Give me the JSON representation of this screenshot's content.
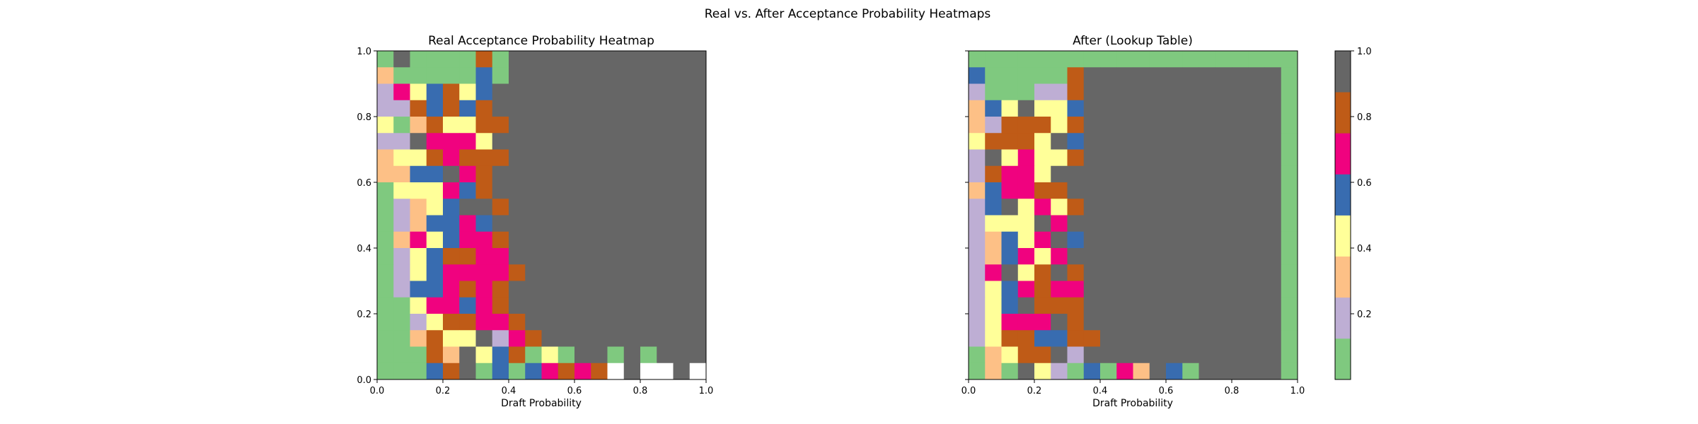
{
  "figure": {
    "suptitle": "Real vs. After Acceptance Probability Heatmaps"
  },
  "colorbar": {
    "ticks": [
      0.2,
      0.4,
      0.6,
      0.8,
      1.0
    ],
    "tick_labels": [
      "0.2",
      "0.4",
      "0.6",
      "0.8",
      "1.0"
    ],
    "range": [
      0,
      1
    ],
    "colors": [
      "#7fc97f",
      "#beaed4",
      "#fdc086",
      "#ffff99",
      "#386cb0",
      "#f0027f",
      "#bf5b17",
      "#666666"
    ]
  },
  "chart_data": [
    {
      "type": "heatmap",
      "title": "Real Acceptance Probability Heatmap",
      "xlabel": "Draft Probability",
      "ylabel": "",
      "xlim": [
        0,
        1
      ],
      "ylim": [
        0,
        1
      ],
      "xticks": [
        "0.0",
        "0.2",
        "0.4",
        "0.6",
        "0.8",
        "1.0"
      ],
      "yticks": [
        "0.0",
        "0.2",
        "0.4",
        "0.6",
        "0.8",
        "1.0"
      ],
      "grid_size": 20,
      "cell_value_encoding": "level index into colorbar.colors (0-7); -1 = no data (white)",
      "rows_top_to_bottom": [
        "07000060777777777777",
        "20000040777777777777",
        "15346347777777777777",
        "11646467777777777777",
        "30263366777777777777",
        "11755537777777777777",
        "23365666777777777777",
        "22447567777777777777",
        "03335467777777777777",
        "01234776777777777777",
        "01244547777777777777",
        "02534556777777777777",
        "01346655777777777777",
        "01345555677777777777",
        "01445656777777777777",
        "00355456777777777777",
        "00136655677777777777",
        "00263371567777777777",
        "00062734603077070777",
        "00046704045656-7--7-"
      ]
    },
    {
      "type": "heatmap",
      "title": "After (Lookup Table)",
      "xlabel": "Draft Probability",
      "ylabel": "",
      "xlim": [
        0,
        1
      ],
      "ylim": [
        0,
        1
      ],
      "xticks": [
        "0.0",
        "0.2",
        "0.4",
        "0.6",
        "0.8",
        "1.0"
      ],
      "yticks": [
        "0.0",
        "0.2",
        "0.4",
        "0.6",
        "0.8",
        "1.0"
      ],
      "grid_size": 20,
      "cell_value_encoding": "level index into colorbar.colors (0-7); -1 = no data (white)",
      "rows_top_to_bottom": [
        "00000000000000000000",
        "40000067777777777770",
        "10001167777777777770",
        "24373347777777777770",
        "21666367777777777770",
        "36663747777777777770",
        "17353367777777777770",
        "16553777777777777770",
        "24556677777777777770",
        "14735367777777777770",
        "13337577777777777770",
        "12435747777777777770",
        "12453577777777777770",
        "15736767777777777770",
        "13456557777777777770",
        "13476667777777777770",
        "13555767777777777770",
        "13664466777777777770",
        "02366717777777777770",
        "02073104052740777770"
      ]
    }
  ]
}
